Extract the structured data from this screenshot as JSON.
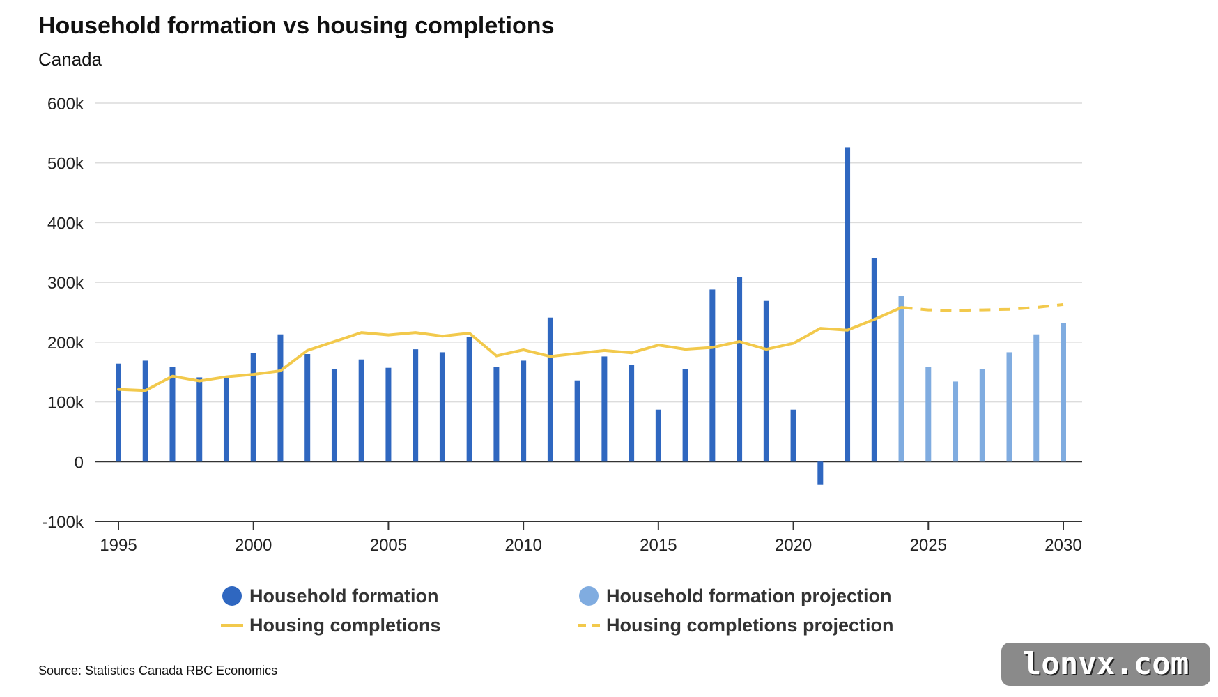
{
  "title": "Household formation vs housing completions",
  "subtitle": "Canada",
  "source": "Source: Statistics Canada RBC Economics",
  "watermark": "lonvx.com",
  "colors": {
    "household": "#2f67c0",
    "household_projection": "#80ace0",
    "completions": "#f2c94c",
    "grid": "#dcdcdc",
    "axis": "#333333"
  },
  "chart_data": {
    "type": "bar",
    "x_ticks": [
      1995,
      2000,
      2005,
      2010,
      2015,
      2020,
      2025,
      2030
    ],
    "y_ticks": [
      {
        "value": -100000,
        "label": "-100k"
      },
      {
        "value": 0,
        "label": "0"
      },
      {
        "value": 100000,
        "label": "100k"
      },
      {
        "value": 200000,
        "label": "200k"
      },
      {
        "value": 300000,
        "label": "300k"
      },
      {
        "value": 400000,
        "label": "400k"
      },
      {
        "value": 500000,
        "label": "500k"
      },
      {
        "value": 600000,
        "label": "600k"
      }
    ],
    "xlim": [
      1995,
      2030
    ],
    "ylim": [
      -100000,
      600000
    ],
    "grid": true,
    "legend_placement": "bottom",
    "series": [
      {
        "name": "Household formation",
        "kind": "bar",
        "x": [
          1995,
          1996,
          1997,
          1998,
          1999,
          2000,
          2001,
          2002,
          2003,
          2004,
          2005,
          2006,
          2007,
          2008,
          2009,
          2010,
          2011,
          2012,
          2013,
          2014,
          2015,
          2016,
          2017,
          2018,
          2019,
          2020,
          2021,
          2022,
          2023
        ],
        "values": [
          164000,
          169000,
          159000,
          141000,
          140000,
          182000,
          213000,
          180000,
          155000,
          171000,
          157000,
          188000,
          183000,
          209000,
          159000,
          169000,
          241000,
          136000,
          176000,
          162000,
          87000,
          155000,
          288000,
          309000,
          269000,
          87000,
          -39000,
          526000,
          341000
        ]
      },
      {
        "name": "Household formation projection",
        "kind": "bar",
        "x": [
          2024,
          2025,
          2026,
          2027,
          2028,
          2029,
          2030
        ],
        "values": [
          277000,
          159000,
          134000,
          155000,
          183000,
          213000,
          232000
        ]
      },
      {
        "name": "Housing completions",
        "kind": "line",
        "x": [
          1995,
          1996,
          1997,
          1998,
          1999,
          2000,
          2001,
          2002,
          2003,
          2004,
          2005,
          2006,
          2007,
          2008,
          2009,
          2010,
          2011,
          2012,
          2013,
          2014,
          2015,
          2016,
          2017,
          2018,
          2019,
          2020,
          2021,
          2022,
          2023,
          2024
        ],
        "values": [
          121000,
          119000,
          143000,
          135000,
          142000,
          146000,
          152000,
          186000,
          201000,
          216000,
          212000,
          216000,
          210000,
          215000,
          177000,
          187000,
          176000,
          181000,
          186000,
          182000,
          195000,
          188000,
          191000,
          201000,
          188000,
          198000,
          223000,
          220000,
          238000,
          258000
        ]
      },
      {
        "name": "Housing completions projection",
        "kind": "line-dashed",
        "x": [
          2024,
          2025,
          2026,
          2027,
          2028,
          2029,
          2030
        ],
        "values": [
          258000,
          254000,
          253000,
          254000,
          255000,
          258000,
          263000
        ]
      }
    ]
  }
}
